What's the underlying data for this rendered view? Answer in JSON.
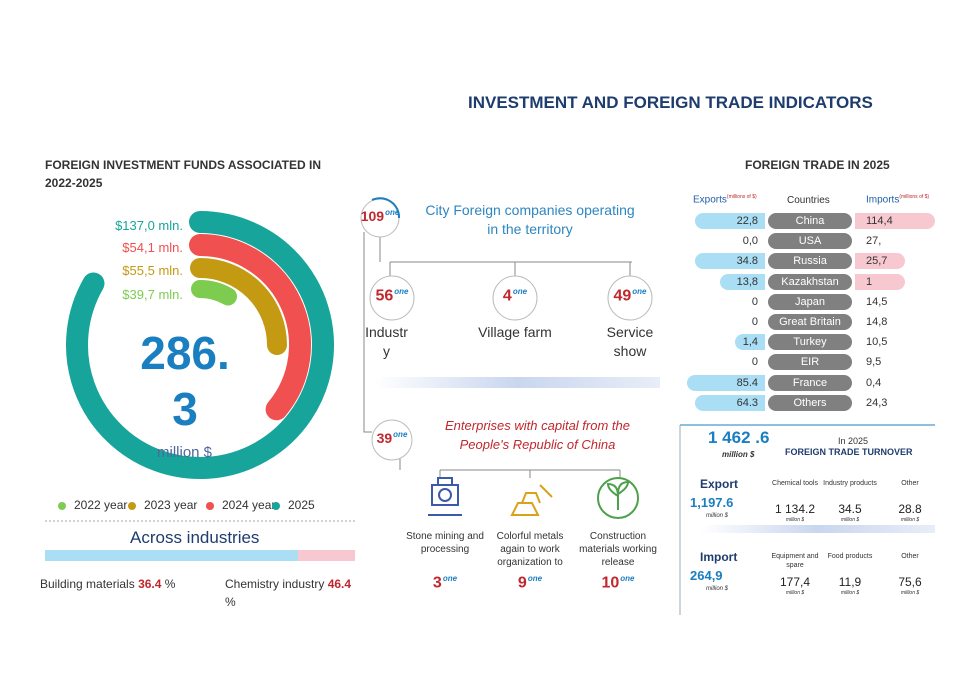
{
  "title": "INVESTMENT AND FOREIGN TRADE INDICATORS",
  "investment": {
    "title": "FOREIGN INVESTMENT FUNDS ASSOCIATED IN 2022-2025",
    "rings": [
      {
        "label": "$137,0 mln.",
        "color": "#17a49b"
      },
      {
        "label": "$54,1 mln.",
        "color": "#f0504f"
      },
      {
        "label": "$55,5 mln.",
        "color": "#c49a13"
      },
      {
        "label": "$39,7 mln.",
        "color": "#7dcc4f"
      }
    ],
    "total": "286.3",
    "unit": "million $",
    "legend": [
      {
        "name": "2022 year",
        "color": "#7dcc4f"
      },
      {
        "name": "2023 year",
        "color": "#c49a13"
      },
      {
        "name": "2024 year",
        "color": "#f0504f"
      },
      {
        "name": "2025",
        "color": "#17a49b"
      }
    ],
    "industries": {
      "title": "Across industries",
      "items": [
        {
          "name": "Building materials",
          "value": "36.4",
          "unit": "%"
        },
        {
          "name": "Chemistry industry",
          "value": "46.4",
          "unit": "%"
        }
      ]
    }
  },
  "companies": {
    "total": {
      "value": "109",
      "unit": "one"
    },
    "title": "City Foreign companies operating in the territory",
    "groups": [
      {
        "value": "56",
        "unit": "one",
        "label": "Industry"
      },
      {
        "value": "4",
        "unit": "one",
        "label": "Village farm"
      },
      {
        "value": "49",
        "unit": "one",
        "label": "Service show"
      }
    ]
  },
  "china": {
    "total": {
      "value": "39",
      "unit": "one"
    },
    "title": "Enterprises with capital from the People's Republic of China",
    "groups": [
      {
        "label": "Stone mining and processing",
        "value": "3",
        "unit": "one"
      },
      {
        "label": "Colorful metals again to work organization to",
        "value": "9",
        "unit": "one"
      },
      {
        "label": "Construction materials working release",
        "value": "10",
        "unit": "one"
      }
    ]
  },
  "trade": {
    "title": "FOREIGN TRADE IN 2025",
    "headers": {
      "exports": "Exports",
      "exports_unit": "(millions of $)",
      "countries": "Countries",
      "imports": "Imports",
      "imports_unit": "(millions of $)"
    },
    "rows": [
      {
        "country": "China",
        "export": "22,8",
        "import": "114,4"
      },
      {
        "country": "USA",
        "export": "0,0",
        "import": "27,"
      },
      {
        "country": "Russia",
        "export": "34.8",
        "import": "25,7"
      },
      {
        "country": "Kazakhstan",
        "export": "13,8",
        "import": "1"
      },
      {
        "country": "Japan",
        "export": "0",
        "import": "14,5"
      },
      {
        "country": "Great Britain",
        "export": "0",
        "import": "14,8"
      },
      {
        "country": "Turkey",
        "export": "1,4",
        "import": "10,5"
      },
      {
        "country": "EIR",
        "export": "0",
        "import": "9,5"
      },
      {
        "country": "France",
        "export": "85.4",
        "import": "0,4"
      },
      {
        "country": "Others",
        "export": "64.3",
        "import": "24,3"
      }
    ]
  },
  "turnover": {
    "total": "1 462 .6",
    "unit": "million $",
    "year": "In 2025",
    "title": "FOREIGN TRADE TURNOVER",
    "export": {
      "label": "Export",
      "value": "1,197.6",
      "unit": "million $",
      "items": [
        {
          "name": "Chemical tools",
          "value": "1 134.2",
          "unit": "million $"
        },
        {
          "name": "Industry products",
          "value": "34.5",
          "unit": "million $"
        },
        {
          "name": "Other",
          "value": "28.8",
          "unit": "million $"
        }
      ]
    },
    "import": {
      "label": "Import",
      "value": "264,9",
      "unit": "million $",
      "items": [
        {
          "name": "Equipment and spare",
          "value": "177,4",
          "unit": "million $"
        },
        {
          "name": "Food products",
          "value": "11,9",
          "unit": "million $"
        },
        {
          "name": "Other",
          "value": "75,6",
          "unit": "million $"
        }
      ]
    }
  }
}
